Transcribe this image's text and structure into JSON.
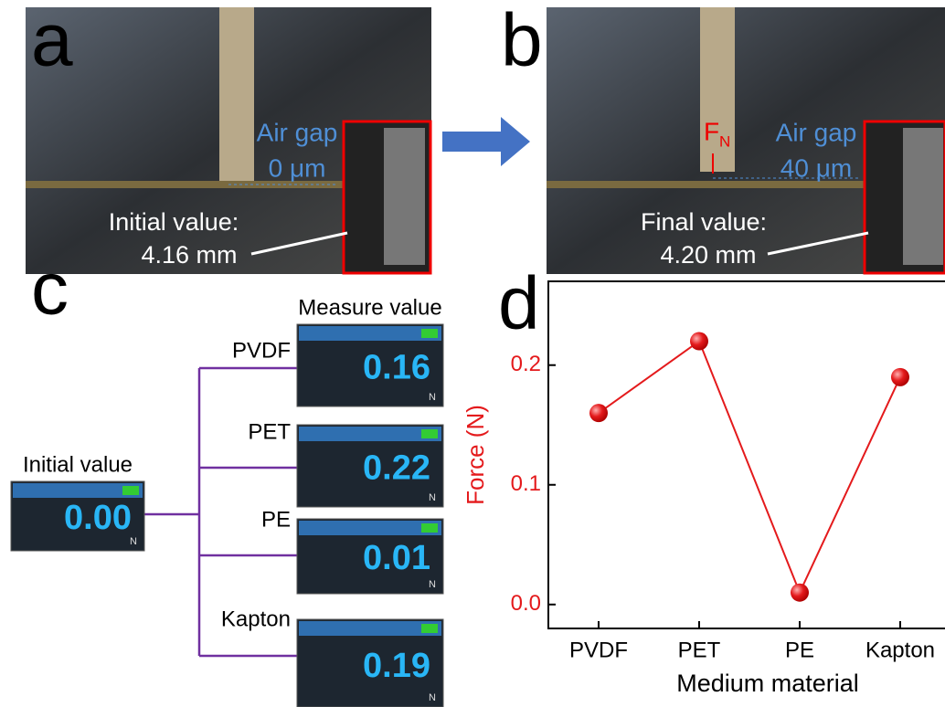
{
  "panels": {
    "a": {
      "label": "a",
      "air_gap": "Air gap",
      "gap_value": "0 μm",
      "value_caption": "Initial value:",
      "value": "4.16 mm"
    },
    "b": {
      "label": "b",
      "force_symbol": "F",
      "force_subscript": "N",
      "air_gap": "Air gap",
      "gap_value": "40 μm",
      "value_caption": "Final value:",
      "value": "4.20 mm"
    },
    "c": {
      "label": "c",
      "measure_caption": "Measure value",
      "initial_caption": "Initial value",
      "initial_reading": "0.00",
      "unit": "N",
      "materials": [
        {
          "name": "PVDF",
          "reading": "0.16"
        },
        {
          "name": "PET",
          "reading": "0.22"
        },
        {
          "name": "PE",
          "reading": "0.01"
        },
        {
          "name": "Kapton",
          "reading": "0.19"
        }
      ]
    }
  },
  "chart_data": {
    "type": "line",
    "panel_label": "d",
    "x_label": "Medium material",
    "y_label": "Force (N)",
    "categories": [
      "PVDF",
      "PET",
      "PE",
      "Kapton"
    ],
    "values": [
      0.16,
      0.22,
      0.01,
      0.19
    ],
    "color": "#e41a1c",
    "ylim": [
      -0.02,
      0.27
    ],
    "yticks": [
      {
        "value": 0,
        "label": "0.0"
      },
      0.1,
      0.2
    ]
  }
}
